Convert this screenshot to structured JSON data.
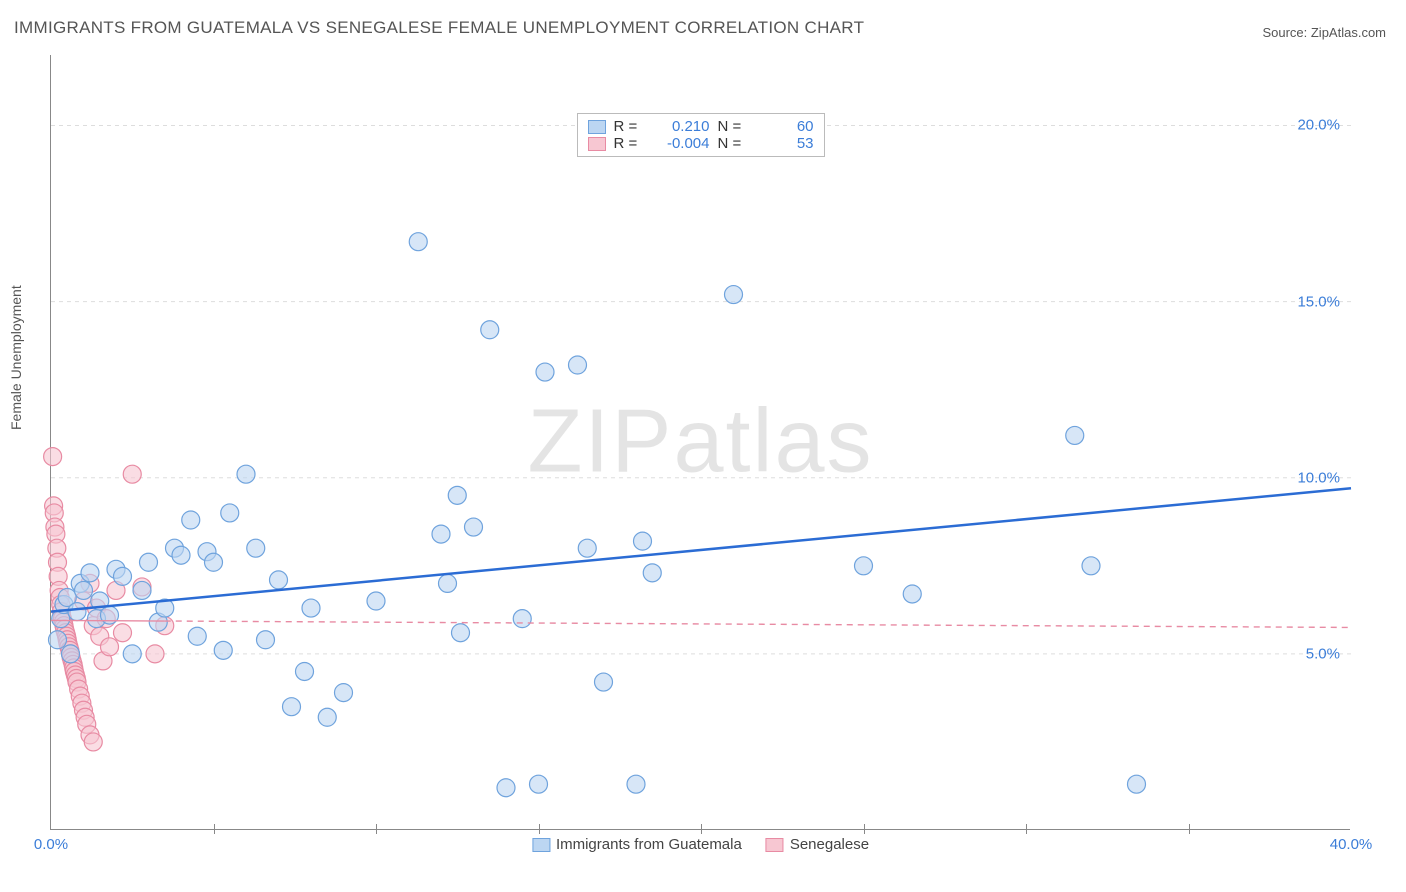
{
  "title": "IMMIGRANTS FROM GUATEMALA VS SENEGALESE FEMALE UNEMPLOYMENT CORRELATION CHART",
  "source_label": "Source: ZipAtlas.com",
  "ylabel": "Female Unemployment",
  "watermark": "ZIPatlas",
  "chart": {
    "type": "scatter",
    "xlim": [
      0,
      40
    ],
    "ylim": [
      0,
      22
    ],
    "x_ticks": [
      {
        "val": 0,
        "label": "0.0%"
      },
      {
        "val": 40,
        "label": "40.0%"
      }
    ],
    "x_tick_marks": [
      5,
      10,
      15,
      20,
      25,
      30,
      35
    ],
    "y_ticks": [
      {
        "val": 5,
        "label": "5.0%"
      },
      {
        "val": 10,
        "label": "10.0%"
      },
      {
        "val": 15,
        "label": "15.0%"
      },
      {
        "val": 20,
        "label": "20.0%"
      }
    ],
    "grid_color": "#dddddd",
    "axis_color": "#888888",
    "tick_label_color": "#3b7dd8",
    "background_color": "#ffffff",
    "marker_radius": 9,
    "marker_stroke_width": 1.2,
    "series": [
      {
        "id": "guatemala",
        "label": "Immigrants from Guatemala",
        "fill": "#bcd6f2",
        "stroke": "#6fa3dd",
        "fill_opacity": 0.6,
        "R": "0.210",
        "N": "60",
        "trend": {
          "y_at_x0": 6.2,
          "y_at_x40": 9.7,
          "color": "#2b6cd4",
          "width": 2.5,
          "dash": ""
        },
        "points": [
          [
            0.2,
            5.4
          ],
          [
            0.3,
            6.0
          ],
          [
            0.4,
            6.4
          ],
          [
            0.5,
            6.6
          ],
          [
            0.6,
            5.0
          ],
          [
            0.8,
            6.2
          ],
          [
            0.9,
            7.0
          ],
          [
            1.0,
            6.8
          ],
          [
            1.2,
            7.3
          ],
          [
            1.4,
            6.0
          ],
          [
            1.5,
            6.5
          ],
          [
            1.8,
            6.1
          ],
          [
            2.0,
            7.4
          ],
          [
            2.2,
            7.2
          ],
          [
            2.5,
            5.0
          ],
          [
            2.8,
            6.8
          ],
          [
            3.0,
            7.6
          ],
          [
            3.3,
            5.9
          ],
          [
            3.5,
            6.3
          ],
          [
            3.8,
            8.0
          ],
          [
            4.0,
            7.8
          ],
          [
            4.3,
            8.8
          ],
          [
            4.5,
            5.5
          ],
          [
            4.8,
            7.9
          ],
          [
            5.0,
            7.6
          ],
          [
            5.3,
            5.1
          ],
          [
            5.5,
            9.0
          ],
          [
            6.0,
            10.1
          ],
          [
            6.3,
            8.0
          ],
          [
            6.6,
            5.4
          ],
          [
            7.0,
            7.1
          ],
          [
            7.4,
            3.5
          ],
          [
            7.8,
            4.5
          ],
          [
            8.0,
            6.3
          ],
          [
            8.5,
            3.2
          ],
          [
            9.0,
            3.9
          ],
          [
            10.0,
            6.5
          ],
          [
            11.3,
            16.7
          ],
          [
            12.0,
            8.4
          ],
          [
            12.2,
            7.0
          ],
          [
            12.5,
            9.5
          ],
          [
            12.6,
            5.6
          ],
          [
            13.0,
            8.6
          ],
          [
            13.5,
            14.2
          ],
          [
            14.0,
            1.2
          ],
          [
            14.5,
            6.0
          ],
          [
            15.0,
            1.3
          ],
          [
            15.2,
            13.0
          ],
          [
            16.2,
            13.2
          ],
          [
            16.5,
            8.0
          ],
          [
            17.0,
            4.2
          ],
          [
            18.0,
            1.3
          ],
          [
            18.2,
            8.2
          ],
          [
            18.5,
            7.3
          ],
          [
            21.0,
            15.2
          ],
          [
            25.0,
            7.5
          ],
          [
            26.5,
            6.7
          ],
          [
            31.5,
            11.2
          ],
          [
            32.0,
            7.5
          ],
          [
            33.4,
            1.3
          ]
        ]
      },
      {
        "id": "senegalese",
        "label": "Senegalese",
        "fill": "#f7c7d2",
        "stroke": "#e88ba3",
        "fill_opacity": 0.6,
        "R": "-0.004",
        "N": "53",
        "trend": {
          "y_at_x0": 5.95,
          "y_at_x40": 5.75,
          "color": "#e88ba3",
          "width": 1.4,
          "dash": "6,5"
        },
        "trend_solid_end_x": 3.5,
        "points": [
          [
            0.05,
            10.6
          ],
          [
            0.08,
            9.2
          ],
          [
            0.1,
            9.0
          ],
          [
            0.12,
            8.6
          ],
          [
            0.15,
            8.4
          ],
          [
            0.18,
            8.0
          ],
          [
            0.2,
            7.6
          ],
          [
            0.22,
            7.2
          ],
          [
            0.25,
            6.8
          ],
          [
            0.28,
            6.6
          ],
          [
            0.3,
            6.4
          ],
          [
            0.32,
            6.2
          ],
          [
            0.35,
            6.0
          ],
          [
            0.38,
            5.9
          ],
          [
            0.4,
            5.8
          ],
          [
            0.42,
            5.7
          ],
          [
            0.45,
            5.6
          ],
          [
            0.48,
            5.5
          ],
          [
            0.5,
            5.4
          ],
          [
            0.52,
            5.3
          ],
          [
            0.55,
            5.2
          ],
          [
            0.58,
            5.1
          ],
          [
            0.6,
            5.0
          ],
          [
            0.62,
            4.9
          ],
          [
            0.65,
            4.8
          ],
          [
            0.68,
            4.7
          ],
          [
            0.7,
            4.6
          ],
          [
            0.72,
            4.5
          ],
          [
            0.75,
            4.4
          ],
          [
            0.78,
            4.3
          ],
          [
            0.8,
            4.2
          ],
          [
            0.85,
            4.0
          ],
          [
            0.9,
            3.8
          ],
          [
            0.95,
            3.6
          ],
          [
            1.0,
            3.4
          ],
          [
            1.05,
            3.2
          ],
          [
            1.1,
            3.0
          ],
          [
            1.2,
            2.7
          ],
          [
            1.3,
            2.5
          ],
          [
            1.0,
            6.5
          ],
          [
            1.2,
            7.0
          ],
          [
            1.3,
            5.8
          ],
          [
            1.4,
            6.3
          ],
          [
            1.5,
            5.5
          ],
          [
            1.6,
            4.8
          ],
          [
            1.7,
            6.0
          ],
          [
            1.8,
            5.2
          ],
          [
            2.0,
            6.8
          ],
          [
            2.2,
            5.6
          ],
          [
            2.5,
            10.1
          ],
          [
            2.8,
            6.9
          ],
          [
            3.2,
            5.0
          ],
          [
            3.5,
            5.8
          ]
        ]
      }
    ]
  },
  "legend_bottom": [
    {
      "series": "guatemala"
    },
    {
      "series": "senegalese"
    }
  ]
}
